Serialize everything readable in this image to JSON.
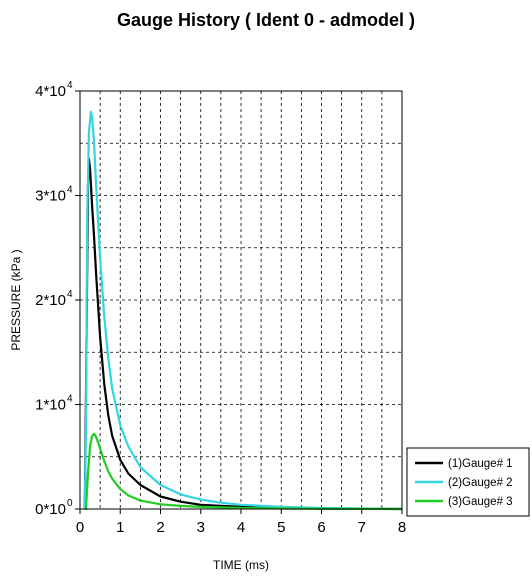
{
  "chart_data": {
    "type": "line",
    "title": "Gauge History ( Ident 0 - admodel )",
    "xlabel": "TIME (ms)",
    "ylabel": "PRESSURE (kPa )",
    "xlim": [
      0,
      8
    ],
    "ylim": [
      0,
      40000
    ],
    "x_ticks": [
      "0",
      "1",
      "2",
      "3",
      "4",
      "5",
      "6",
      "7",
      "8"
    ],
    "y_ticks": [
      {
        "base": "0*10",
        "exp": "0"
      },
      {
        "base": "1*10",
        "exp": "4"
      },
      {
        "base": "2*10",
        "exp": "4"
      },
      {
        "base": "3*10",
        "exp": "4"
      },
      {
        "base": "4*10",
        "exp": "4"
      }
    ],
    "grid": true,
    "legend_position": "bottom-right",
    "series": [
      {
        "name": "(1)Gauge# 1",
        "color": "#000000",
        "x": [
          0.12,
          0.16,
          0.2,
          0.22,
          0.25,
          0.3,
          0.35,
          0.4,
          0.5,
          0.6,
          0.7,
          0.8,
          1.0,
          1.2,
          1.5,
          2.0,
          2.5,
          3.0,
          4.0,
          5.0,
          6.0,
          7.0,
          8.0
        ],
        "y": [
          0,
          15000,
          31000,
          33500,
          32500,
          29000,
          26000,
          22500,
          16500,
          12000,
          9000,
          7000,
          4700,
          3400,
          2300,
          1200,
          700,
          400,
          200,
          100,
          50,
          20,
          0
        ]
      },
      {
        "name": "(2)Gauge# 2",
        "color": "#33d6e0",
        "x": [
          0.12,
          0.15,
          0.18,
          0.22,
          0.27,
          0.3,
          0.35,
          0.4,
          0.5,
          0.6,
          0.7,
          0.8,
          1.0,
          1.2,
          1.5,
          2.0,
          2.5,
          3.0,
          3.5,
          4.0,
          5.0,
          6.0,
          7.0,
          8.0
        ],
        "y": [
          0,
          8000,
          28000,
          36000,
          38000,
          37500,
          35000,
          31000,
          24000,
          18500,
          14500,
          11500,
          8000,
          6000,
          4000,
          2300,
          1400,
          900,
          600,
          400,
          200,
          100,
          50,
          0
        ]
      },
      {
        "name": "(3)Gauge# 3",
        "color": "#22cc22",
        "x": [
          0.12,
          0.15,
          0.2,
          0.25,
          0.3,
          0.35,
          0.4,
          0.5,
          0.6,
          0.7,
          0.8,
          1.0,
          1.2,
          1.5,
          2.0,
          2.5,
          3.0,
          3.5,
          4.0,
          5.0,
          6.0,
          7.0,
          8.0
        ],
        "y": [
          0,
          0,
          3500,
          6000,
          7000,
          7200,
          6900,
          5800,
          4600,
          3600,
          2900,
          1900,
          1300,
          800,
          450,
          300,
          200,
          150,
          100,
          50,
          20,
          10,
          0
        ]
      }
    ]
  }
}
